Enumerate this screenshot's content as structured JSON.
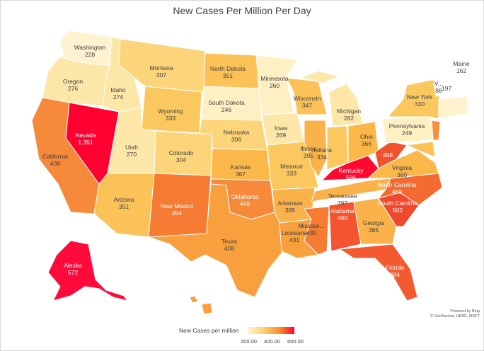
{
  "title": "New Cases Per Million Per Day",
  "credit": {
    "line1": "Powered by Bing",
    "line2": "© GeoNames, HERE, MSFT"
  },
  "legend": {
    "title": "New Cases per million",
    "ticks": [
      "200.00",
      "400.00",
      "600.00"
    ],
    "colors": {
      "low": "#fff7d1",
      "mid": "#fdd06a",
      "high": "#ff0030"
    }
  },
  "states": [
    {
      "name": "Washington",
      "value": "228"
    },
    {
      "name": "Oregon",
      "value": "276"
    },
    {
      "name": "California",
      "value": "438"
    },
    {
      "name": "Nevada",
      "value": "1,351"
    },
    {
      "name": "Idaho",
      "value": "274"
    },
    {
      "name": "Montana",
      "value": "307"
    },
    {
      "name": "Wyoming",
      "value": "333"
    },
    {
      "name": "Utah",
      "value": "270"
    },
    {
      "name": "Arizona",
      "value": "351"
    },
    {
      "name": "Colorado",
      "value": "304"
    },
    {
      "name": "New Mexico",
      "value": "454"
    },
    {
      "name": "North Dakota",
      "value": "351"
    },
    {
      "name": "South Dakota",
      "value": "246"
    },
    {
      "name": "Nebraska",
      "value": "306"
    },
    {
      "name": "Kansas",
      "value": "367"
    },
    {
      "name": "Oklahoma",
      "value": "449"
    },
    {
      "name": "Texas",
      "value": "408"
    },
    {
      "name": "Minnesota",
      "value": "260"
    },
    {
      "name": "Iowa",
      "value": "269"
    },
    {
      "name": "Missouri",
      "value": "333"
    },
    {
      "name": "Arkansas",
      "value": "395"
    },
    {
      "name": "Louisiana",
      "value": "431"
    },
    {
      "name": "Wisconsin",
      "value": "347"
    },
    {
      "name": "Illinois",
      "value": "395"
    },
    {
      "name": "Mississi...",
      "value": "435"
    },
    {
      "name": "Michigan",
      "value": "282"
    },
    {
      "name": "Indiana",
      "value": "334"
    },
    {
      "name": "Kentucky",
      "value": "596"
    },
    {
      "name": "Tennessee",
      "value": "397"
    },
    {
      "name": "Alabama",
      "value": "490"
    },
    {
      "name": "Ohio",
      "value": "366"
    },
    {
      "name": "Georgia",
      "value": "385"
    },
    {
      "name": "Florida",
      "value": "484"
    },
    {
      "name": "South Carolina",
      "value": "502"
    },
    {
      "name": "North Carolina",
      "value": "468"
    },
    {
      "name": "Virginia",
      "value": "360"
    },
    {
      "name": "",
      "value": "498"
    },
    {
      "name": "Pennsylvania",
      "value": "249"
    },
    {
      "name": "New York",
      "value": "330"
    },
    {
      "name": "Maine",
      "value": "162"
    },
    {
      "name": "V...",
      "value": "88"
    },
    {
      "name": "",
      "value": "197"
    },
    {
      "name": "Alaska",
      "value": "572"
    }
  ]
}
